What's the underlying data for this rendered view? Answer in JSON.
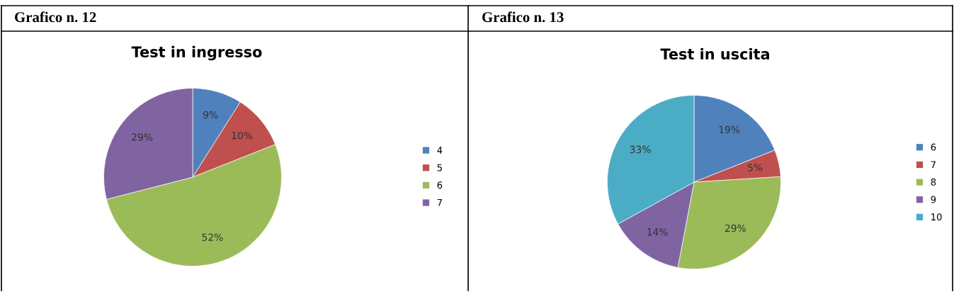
{
  "chart_data": [
    {
      "type": "pie",
      "title": "Test in ingresso",
      "annotations": [
        "Grafico n. 12"
      ],
      "categories": [
        "4",
        "5",
        "6",
        "7"
      ],
      "values": [
        9,
        10,
        52,
        29
      ],
      "colors": [
        "#4f81bd",
        "#c0504d",
        "#9bbb59",
        "#8064a2"
      ],
      "value_labels": [
        "9%",
        "10%",
        "52%",
        "29%"
      ],
      "legend": "right"
    },
    {
      "type": "pie",
      "title": "Test in uscita",
      "annotations": [
        "Grafico n. 13"
      ],
      "categories": [
        "6",
        "7",
        "8",
        "9",
        "10"
      ],
      "values": [
        19,
        5,
        29,
        14,
        33
      ],
      "colors": [
        "#4f81bd",
        "#c0504d",
        "#9bbb59",
        "#8064a2",
        "#4bacc6"
      ],
      "value_labels": [
        "19%",
        "5%",
        "29%",
        "14%",
        "33%"
      ],
      "legend": "right"
    }
  ]
}
